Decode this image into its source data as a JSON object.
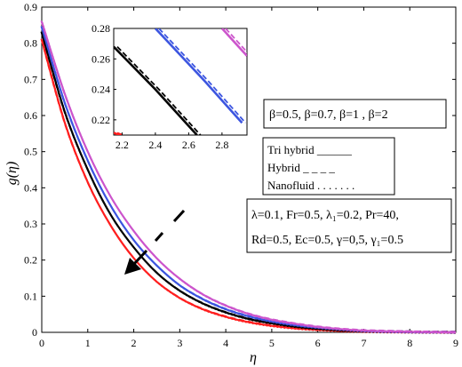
{
  "chart_data": {
    "type": "line",
    "xlabel": "η",
    "ylabel": "g(η)",
    "xlim": [
      0,
      9
    ],
    "ylim": [
      0,
      0.9
    ],
    "xticks": [
      "0",
      "1",
      "2",
      "3",
      "4",
      "5",
      "6",
      "7",
      "8",
      "9"
    ],
    "yticks": [
      "0",
      "0.1",
      "0.2",
      "0.3",
      "0.4",
      "0.5",
      "0.6",
      "0.7",
      "0.8",
      "0.9"
    ],
    "series": [
      {
        "name": "β=0.5",
        "color": "#ff1f1f",
        "x": [
          0,
          0.5,
          1,
          1.5,
          2,
          2.5,
          3,
          3.5,
          4,
          4.5,
          5,
          5.5,
          6,
          6.5,
          7,
          7.5,
          8,
          8.5,
          9
        ],
        "y": [
          0.81,
          0.58,
          0.415,
          0.295,
          0.205,
          0.14,
          0.095,
          0.064,
          0.043,
          0.028,
          0.018,
          0.011,
          0.007,
          0.004,
          0.002,
          0.001,
          0.0006,
          0.0002,
          0
        ]
      },
      {
        "name": "β=0.7",
        "color": "#000000",
        "x": [
          0,
          0.5,
          1,
          1.5,
          2,
          2.5,
          3,
          3.5,
          4,
          4.5,
          5,
          5.5,
          6,
          6.5,
          7,
          7.5,
          8,
          8.5,
          9
        ],
        "y": [
          0.83,
          0.61,
          0.45,
          0.325,
          0.235,
          0.165,
          0.115,
          0.08,
          0.055,
          0.037,
          0.025,
          0.016,
          0.01,
          0.006,
          0.003,
          0.002,
          0.001,
          0.0003,
          0
        ]
      },
      {
        "name": "β=1",
        "color": "#3c55e0",
        "x": [
          0,
          0.5,
          1,
          1.5,
          2,
          2.5,
          3,
          3.5,
          4,
          4.5,
          5,
          5.5,
          6,
          6.5,
          7,
          7.5,
          8,
          8.5,
          9
        ],
        "y": [
          0.845,
          0.635,
          0.475,
          0.35,
          0.255,
          0.185,
          0.13,
          0.092,
          0.064,
          0.044,
          0.03,
          0.02,
          0.013,
          0.008,
          0.004,
          0.002,
          0.001,
          0.0004,
          0
        ]
      },
      {
        "name": "β=2",
        "color": "#cc55cc",
        "x": [
          0,
          0.5,
          1,
          1.5,
          2,
          2.5,
          3,
          3.5,
          4,
          4.5,
          5,
          5.5,
          6,
          6.5,
          7,
          7.5,
          8,
          8.5,
          9
        ],
        "y": [
          0.86,
          0.66,
          0.5,
          0.375,
          0.28,
          0.205,
          0.148,
          0.105,
          0.074,
          0.051,
          0.035,
          0.024,
          0.015,
          0.009,
          0.005,
          0.003,
          0.0015,
          0.0005,
          0
        ]
      }
    ],
    "inset": {
      "xlim": [
        2.15,
        2.95
      ],
      "ylim": [
        0.21,
        0.28
      ],
      "xticks": [
        "2.2",
        "2.4",
        "2.6",
        "2.8"
      ],
      "yticks": [
        "0.22",
        "0.24",
        "0.26",
        "0.28"
      ],
      "series": [
        {
          "color": "#ff1f1f",
          "x": [
            2.15,
            2.23
          ],
          "y": [
            0.2115,
            0.208
          ]
        },
        {
          "color": "#000000",
          "x": [
            2.15,
            2.4,
            2.65
          ],
          "y": [
            0.268,
            0.24,
            0.21
          ]
        },
        {
          "color": "#3c55e0",
          "x": [
            2.4,
            2.7,
            2.92
          ],
          "y": [
            0.28,
            0.245,
            0.218
          ]
        },
        {
          "color": "#cc55cc",
          "x": [
            2.8,
            2.9,
            2.95
          ],
          "y": [
            0.28,
            0.268,
            0.262
          ]
        }
      ]
    },
    "annotations": {
      "beta_box": "β=0.5, β=0.7, β=1 , β=2",
      "legend": [
        "Tri hybrid ______",
        "Hybrid   _ _ _ _",
        "Nanofluid . . . . . . ."
      ],
      "params_line1": "λ=0.1, Fr=0.5,  λ₁=0.2, Pr=40,",
      "params_line2": "Rd=0.5, Ec=0.5, γ=0,5, γ₁=0.5"
    }
  }
}
